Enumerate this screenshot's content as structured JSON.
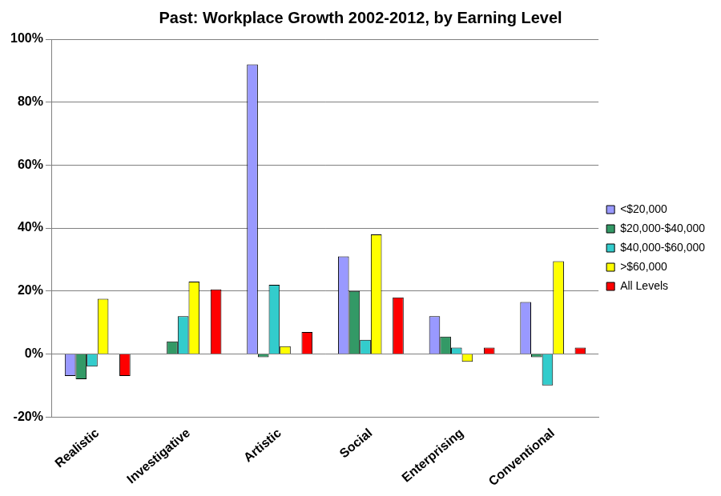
{
  "chart_data": {
    "type": "bar",
    "title": "Past: Workplace Growth 2002-2012, by Earning Level",
    "categories": [
      "Realistic",
      "Investigative",
      "Artistic",
      "Social",
      "Enterprising",
      "Conventional"
    ],
    "series": [
      {
        "name": "<$20,000",
        "color": "#9999ff",
        "values": [
          -7,
          0,
          92,
          31,
          12,
          16.5
        ]
      },
      {
        "name": "$20,000-$40,000",
        "color": "#339966",
        "values": [
          -8,
          4,
          -1,
          20,
          5.5,
          -1
        ]
      },
      {
        "name": "$40,000-$60,000",
        "color": "#33cccc",
        "values": [
          -4,
          12,
          22,
          4.5,
          2,
          -10
        ]
      },
      {
        "name": ">$60,000",
        "color": "#ffff00",
        "values": [
          17.5,
          23,
          2.5,
          38,
          -2.5,
          29.5
        ]
      },
      {
        "name": "All Levels",
        "color": "#ff0000",
        "values": [
          -7,
          20.5,
          7,
          18,
          2,
          2
        ]
      }
    ],
    "ylim": [
      -20,
      100
    ],
    "yticks": [
      {
        "value": -20,
        "label": "-20%"
      },
      {
        "value": 0,
        "label": "0%"
      },
      {
        "value": 20,
        "label": "20%"
      },
      {
        "value": 40,
        "label": "40%"
      },
      {
        "value": 60,
        "label": "60%"
      },
      {
        "value": 80,
        "label": "80%"
      },
      {
        "value": 100,
        "label": "100%"
      }
    ],
    "grid": true,
    "legend": "right"
  }
}
